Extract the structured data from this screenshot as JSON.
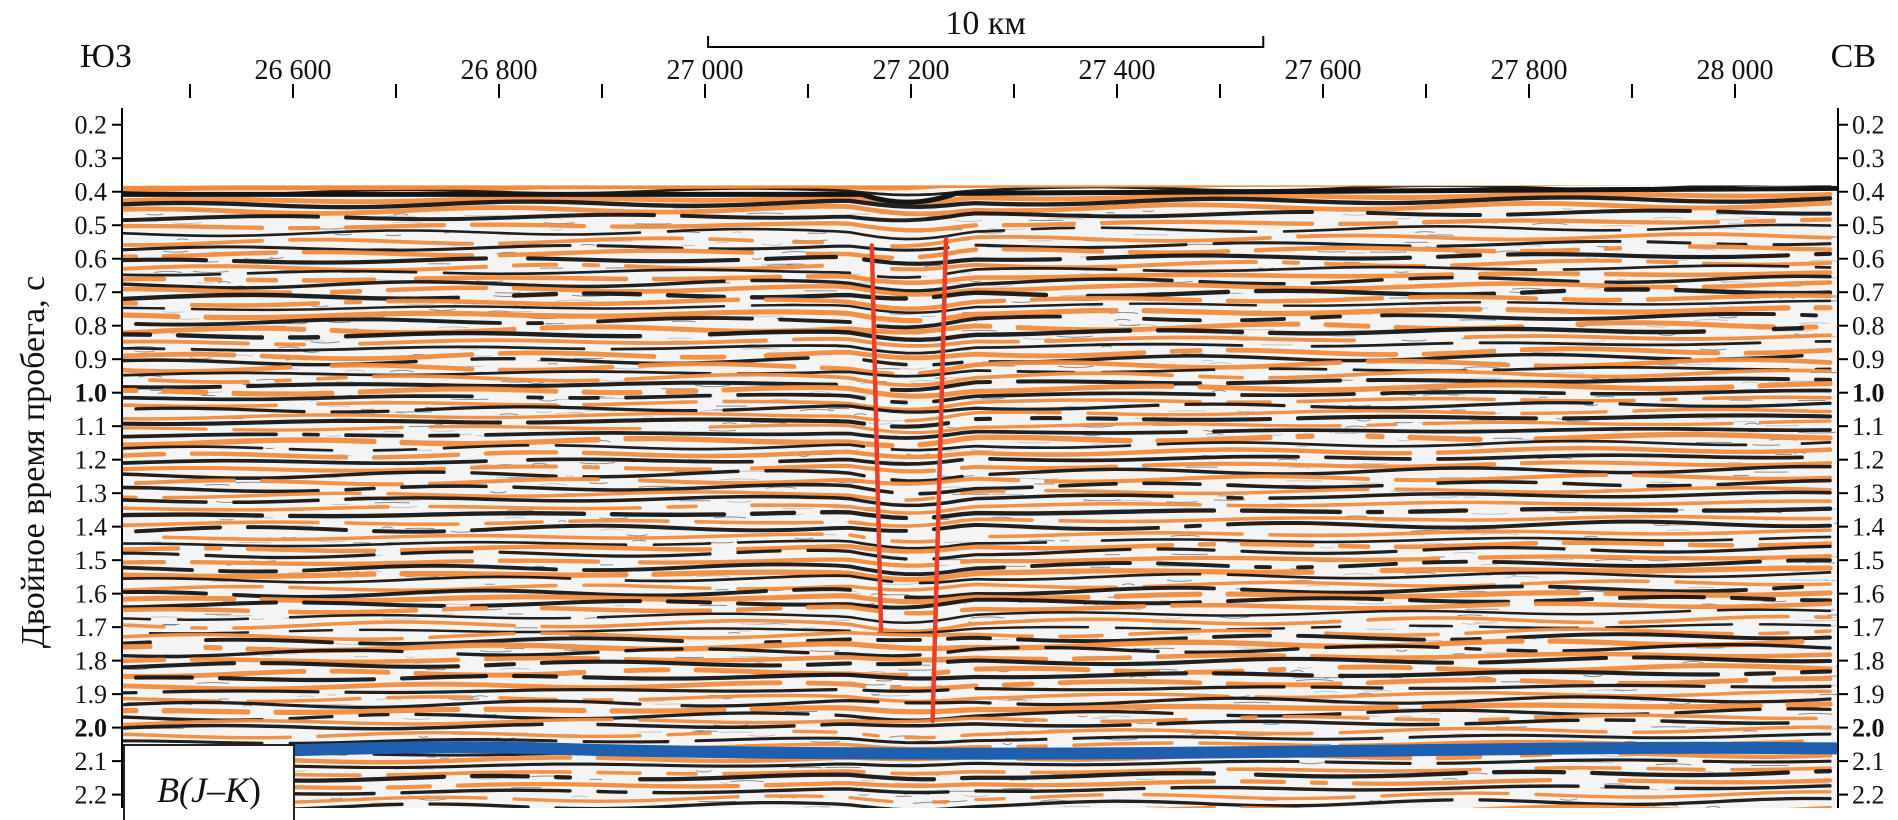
{
  "figure": {
    "left_direction": "ЮЗ",
    "right_direction": "СВ",
    "scale_bar_label": "10 км",
    "y_axis_label": "Двойное время пробега, с",
    "horizon_label_parts": [
      "B(",
      "J",
      "–",
      "K",
      ")"
    ],
    "colors": {
      "positive_reflector": "#f28c3c",
      "negative_reflector": "#141414",
      "noise": "#8a8a8a",
      "fault": "#e8402b",
      "horizon": "#1f5fb0",
      "axis": "#000000"
    }
  },
  "top_axis": {
    "ticks": [
      26500,
      26600,
      26700,
      26800,
      26900,
      27000,
      27100,
      27200,
      27300,
      27400,
      27500,
      27600,
      27700,
      27800,
      27900,
      28000
    ],
    "labels": [
      {
        "value": 26600,
        "text": "26 600"
      },
      {
        "value": 26800,
        "text": "26 800"
      },
      {
        "value": 27000,
        "text": "27 000"
      },
      {
        "value": 27200,
        "text": "27 200"
      },
      {
        "value": 27400,
        "text": "27 400"
      },
      {
        "value": 27600,
        "text": "27 600"
      },
      {
        "value": 27800,
        "text": "27 800"
      },
      {
        "value": 28000,
        "text": "28 000"
      }
    ],
    "range": [
      26434,
      28100
    ],
    "scale_bar_range": [
      27003,
      27542
    ]
  },
  "y_axis": {
    "range": [
      0.15,
      2.24
    ],
    "ticks": [
      {
        "value": 0.2,
        "text": "0.2",
        "bold": false
      },
      {
        "value": 0.3,
        "text": "0.3",
        "bold": false
      },
      {
        "value": 0.4,
        "text": "0.4",
        "bold": false
      },
      {
        "value": 0.5,
        "text": "0.5",
        "bold": false
      },
      {
        "value": 0.6,
        "text": "0.6",
        "bold": false
      },
      {
        "value": 0.7,
        "text": "0.7",
        "bold": false
      },
      {
        "value": 0.8,
        "text": "0.8",
        "bold": false
      },
      {
        "value": 0.9,
        "text": "0.9",
        "bold": false
      },
      {
        "value": 1.0,
        "text": "1.0",
        "bold": true
      },
      {
        "value": 1.1,
        "text": "1.1",
        "bold": false
      },
      {
        "value": 1.2,
        "text": "1.2",
        "bold": false
      },
      {
        "value": 1.3,
        "text": "1.3",
        "bold": false
      },
      {
        "value": 1.4,
        "text": "1.4",
        "bold": false
      },
      {
        "value": 1.5,
        "text": "1.5",
        "bold": false
      },
      {
        "value": 1.6,
        "text": "1.6",
        "bold": false
      },
      {
        "value": 1.7,
        "text": "1.7",
        "bold": false
      },
      {
        "value": 1.8,
        "text": "1.8",
        "bold": false
      },
      {
        "value": 1.9,
        "text": "1.9",
        "bold": false
      },
      {
        "value": 2.0,
        "text": "2.0",
        "bold": true
      },
      {
        "value": 2.1,
        "text": "2.1",
        "bold": false
      },
      {
        "value": 2.2,
        "text": "2.2",
        "bold": false
      }
    ]
  },
  "seismic": {
    "seafloor_twt_s": 0.39,
    "horizon_twt_s": 2.08,
    "faults": [
      {
        "top": [
          27162,
          0.56
        ],
        "bottom": [
          27171,
          1.71
        ]
      },
      {
        "top": [
          27234,
          0.54
        ],
        "bottom": [
          27221,
          1.98
        ]
      }
    ]
  }
}
